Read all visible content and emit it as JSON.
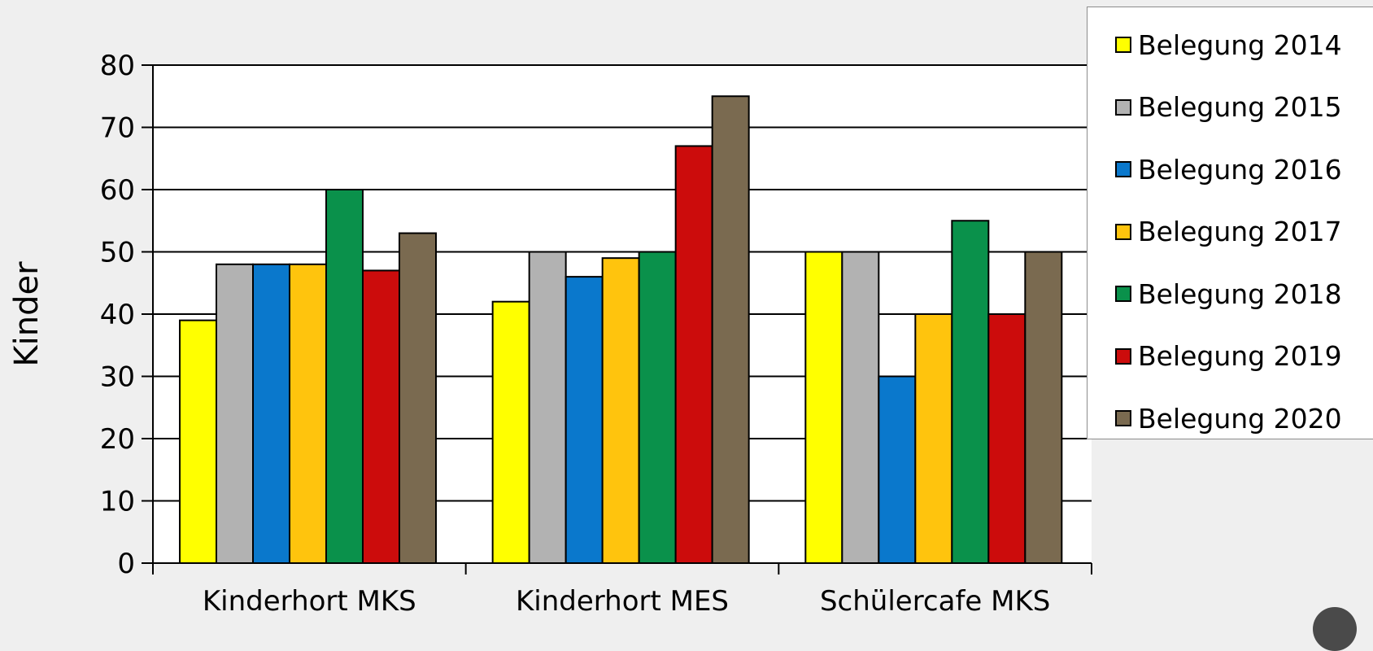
{
  "chart_data": {
    "type": "bar",
    "title": "",
    "xlabel": "",
    "ylabel": "Kinder",
    "ylim": [
      0,
      80
    ],
    "yticks": [
      0,
      10,
      20,
      30,
      40,
      50,
      60,
      70,
      80
    ],
    "grid": true,
    "legend_position": "top-right",
    "categories": [
      "Kinderhort MKS",
      "Kinderhort MES",
      "Schülercafe MKS"
    ],
    "series": [
      {
        "name": "Belegung 2014",
        "color": "#ffff00",
        "values": [
          39,
          42,
          50
        ]
      },
      {
        "name": "Belegung 2015",
        "color": "#b2b2b2",
        "values": [
          48,
          50,
          50
        ]
      },
      {
        "name": "Belegung 2016",
        "color": "#0a78cc",
        "values": [
          48,
          46,
          30
        ]
      },
      {
        "name": "Belegung 2017",
        "color": "#ffc40d",
        "values": [
          48,
          49,
          40
        ]
      },
      {
        "name": "Belegung 2018",
        "color": "#0a914b",
        "values": [
          60,
          50,
          55
        ]
      },
      {
        "name": "Belegung 2019",
        "color": "#cc0c0c",
        "values": [
          47,
          67,
          40
        ]
      },
      {
        "name": "Belegung 2020",
        "color": "#7a6a50",
        "values": [
          53,
          75,
          50
        ]
      }
    ]
  }
}
